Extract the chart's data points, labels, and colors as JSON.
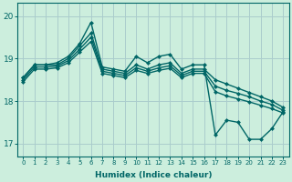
{
  "xlabel": "Humidex (Indice chaleur)",
  "bg_color": "#cceedd",
  "line_color": "#006666",
  "grid_color": "#aacccc",
  "ylim": [
    16.7,
    20.3
  ],
  "xlim": [
    -0.5,
    23.5
  ],
  "yticks": [
    17,
    18,
    19,
    20
  ],
  "xticks": [
    0,
    1,
    2,
    3,
    4,
    5,
    6,
    7,
    8,
    9,
    10,
    11,
    12,
    13,
    14,
    15,
    16,
    17,
    18,
    19,
    20,
    21,
    22,
    23
  ],
  "series": [
    [
      18.55,
      18.85,
      18.85,
      18.9,
      19.05,
      19.35,
      19.85,
      18.8,
      18.75,
      18.7,
      19.05,
      18.9,
      19.05,
      19.1,
      18.75,
      18.85,
      18.85,
      17.2,
      17.55,
      17.5,
      17.1,
      17.1,
      17.35,
      17.75
    ],
    [
      18.55,
      18.85,
      18.85,
      18.85,
      19.0,
      19.3,
      19.6,
      18.75,
      18.7,
      18.65,
      18.85,
      18.75,
      18.85,
      18.9,
      18.65,
      18.75,
      18.75,
      18.5,
      18.4,
      18.3,
      18.2,
      18.1,
      18.0,
      17.85
    ],
    [
      18.5,
      18.8,
      18.8,
      18.82,
      18.95,
      19.22,
      19.5,
      18.7,
      18.65,
      18.6,
      18.78,
      18.7,
      18.78,
      18.83,
      18.6,
      18.7,
      18.7,
      18.35,
      18.25,
      18.18,
      18.1,
      18.0,
      17.92,
      17.78
    ],
    [
      18.45,
      18.75,
      18.75,
      18.78,
      18.9,
      19.15,
      19.4,
      18.65,
      18.6,
      18.55,
      18.72,
      18.65,
      18.72,
      18.77,
      18.55,
      18.65,
      18.65,
      18.22,
      18.12,
      18.05,
      17.98,
      17.9,
      17.82,
      17.72
    ]
  ],
  "marker": "D",
  "markersize": 2.5,
  "linewidth": 1.0
}
